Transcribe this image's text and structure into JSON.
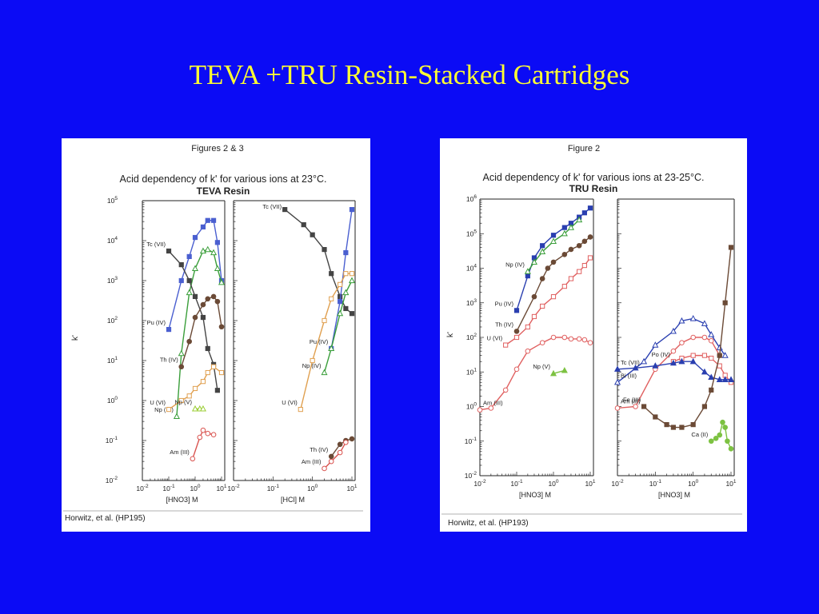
{
  "slide": {
    "title": "TEVA +TRU Resin-Stacked Cartridges"
  },
  "chart_data": [
    {
      "type": "line",
      "figure_label": "Figures 2 & 3",
      "title": "Acid dependency of k' for various ions at 23°C.",
      "subtitle": "TEVA Resin",
      "ylabel": "k'",
      "y_scale": "log",
      "ylim": [
        0.01,
        100000
      ],
      "y_ticks": [
        "10-2",
        "10-1",
        "100",
        "101",
        "102",
        "103",
        "104",
        "105"
      ],
      "citation": "Horwitz, et al. (HP195)",
      "subplots": [
        {
          "xlabel": "[HNO3] M",
          "x_scale": "log",
          "xlim": [
            0.01,
            10
          ],
          "x_ticks": [
            "10-2",
            "10-1",
            "100",
            "101"
          ],
          "series": [
            {
              "name": "Pu (IV)",
              "color": "#4A5FD0",
              "marker": "square-filled",
              "x": [
                0.1,
                0.3,
                0.6,
                1,
                2,
                3,
                5,
                7,
                10
              ],
              "y": [
                60,
                1000,
                4000,
                12000,
                22000,
                32000,
                32000,
                9000,
                1000
              ]
            },
            {
              "name": "Np (IV)",
              "color": "#3A9E3A",
              "marker": "triangle-open",
              "x": [
                0.2,
                0.3,
                0.6,
                1,
                2,
                3,
                5,
                7,
                10
              ],
              "y": [
                0.4,
                15,
                500,
                2000,
                5500,
                6000,
                5000,
                2000,
                900
              ]
            },
            {
              "name": "Tc (VII)",
              "color": "#444444",
              "marker": "square-filled",
              "x": [
                0.1,
                0.3,
                0.6,
                1,
                2,
                3,
                5,
                7
              ],
              "y": [
                5500,
                2500,
                1000,
                400,
                120,
                20,
                8,
                1.8
              ]
            },
            {
              "name": "Th (IV)",
              "color": "#6B4A36",
              "marker": "circle-filled",
              "x": [
                0.3,
                0.6,
                1,
                2,
                3,
                5,
                7,
                10
              ],
              "y": [
                7,
                30,
                120,
                250,
                350,
                400,
                300,
                70
              ]
            },
            {
              "name": "U (VI)",
              "color": "#E0A050",
              "marker": "square-open",
              "x": [
                0.1,
                0.3,
                0.6,
                1,
                2,
                3,
                5,
                10
              ],
              "y": [
                0.6,
                1,
                1.3,
                2,
                3,
                5,
                7,
                5
              ]
            },
            {
              "name": "Np (V)",
              "color": "#9ACD32",
              "marker": "triangle-open",
              "x": [
                1,
                1.5,
                2
              ],
              "y": [
                0.62,
                0.62,
                0.62
              ]
            },
            {
              "name": "Am (III)",
              "color": "#D9534F",
              "marker": "circle-open",
              "x": [
                0.8,
                1.5,
                2,
                3,
                5
              ],
              "y": [
                0.035,
                0.12,
                0.18,
                0.15,
                0.14
              ]
            }
          ]
        },
        {
          "xlabel": "[HCl] M",
          "x_scale": "log",
          "xlim": [
            0.01,
            10
          ],
          "x_ticks": [
            "10-2",
            "10-1",
            "100",
            "101"
          ],
          "series": [
            {
              "name": "Tc (VII)",
              "color": "#444444",
              "marker": "square-filled",
              "x": [
                0.2,
                0.6,
                1,
                2,
                3,
                5,
                7,
                10
              ],
              "y": [
                60000,
                25000,
                14000,
                6000,
                1500,
                400,
                200,
                150
              ]
            },
            {
              "name": "Pu (IV)",
              "color": "#4A5FD0",
              "marker": "square-filled",
              "x": [
                3,
                5,
                7,
                10
              ],
              "y": [
                20,
                300,
                5000,
                60000
              ]
            },
            {
              "name": "U (VI)",
              "color": "#E0A050",
              "marker": "square-open",
              "x": [
                0.5,
                1,
                2,
                3,
                5,
                7,
                10
              ],
              "y": [
                0.6,
                10,
                100,
                350,
                800,
                1500,
                1500
              ]
            },
            {
              "name": "Np (IV)",
              "color": "#3A9E3A",
              "marker": "triangle-open",
              "x": [
                2,
                3,
                5,
                7,
                10
              ],
              "y": [
                5,
                20,
                150,
                500,
                1000
              ]
            },
            {
              "name": "Th (IV)",
              "color": "#6B4A36",
              "marker": "circle-filled",
              "x": [
                3,
                5,
                7,
                10
              ],
              "y": [
                0.04,
                0.08,
                0.1,
                0.11
              ]
            },
            {
              "name": "Am (III)",
              "color": "#D9534F",
              "marker": "circle-open",
              "x": [
                2,
                3,
                5,
                7
              ],
              "y": [
                0.02,
                0.03,
                0.05,
                0.09
              ]
            }
          ]
        }
      ]
    },
    {
      "type": "line",
      "figure_label": "Figure 2",
      "title": "Acid dependency of k' for various ions at 23-25°C.",
      "subtitle": "TRU Resin",
      "ylabel": "k'",
      "y_scale": "log",
      "ylim": [
        0.01,
        1000000
      ],
      "y_ticks": [
        "10-2",
        "10-1",
        "100",
        "101",
        "102",
        "103",
        "104",
        "105",
        "106"
      ],
      "citation": "Horwitz, et al. (HP193)",
      "subplots": [
        {
          "xlabel": "[HNO3] M",
          "x_scale": "log",
          "xlim": [
            0.01,
            10
          ],
          "x_ticks": [
            "10-2",
            "10-1",
            "100",
            "101"
          ],
          "series": [
            {
              "name": "Pu (IV)",
              "color": "#2A3FB0",
              "marker": "square-filled",
              "x": [
                0.1,
                0.2,
                0.3,
                0.5,
                1,
                2,
                3,
                5,
                7,
                10
              ],
              "y": [
                600,
                6000,
                20000,
                45000,
                90000,
                150000,
                200000,
                300000,
                400000,
                550000
              ]
            },
            {
              "name": "Np (IV)",
              "color": "#3A9E3A",
              "marker": "triangle-open",
              "x": [
                0.2,
                0.3,
                0.5,
                1,
                2,
                3,
                5
              ],
              "y": [
                8000,
                15000,
                30000,
                60000,
                100000,
                150000,
                250000
              ]
            },
            {
              "name": "Th (IV)",
              "color": "#6B4A36",
              "marker": "circle-filled",
              "x": [
                0.1,
                0.3,
                0.5,
                0.7,
                1,
                2,
                3,
                5,
                7,
                10
              ],
              "y": [
                150,
                1500,
                5000,
                10000,
                15000,
                25000,
                35000,
                45000,
                60000,
                80000
              ]
            },
            {
              "name": "U (VI)",
              "color": "#E06060",
              "marker": "square-open",
              "x": [
                0.05,
                0.1,
                0.2,
                0.3,
                0.5,
                1,
                2,
                3,
                5,
                7,
                10
              ],
              "y": [
                60,
                100,
                200,
                400,
                800,
                1500,
                3000,
                5000,
                8000,
                12000,
                20000
              ]
            },
            {
              "name": "Am (III)",
              "color": "#E06060",
              "marker": "circle-open",
              "x": [
                0.01,
                0.02,
                0.05,
                0.1,
                0.2,
                0.5,
                1,
                2,
                3,
                5,
                7,
                10
              ],
              "y": [
                0.8,
                0.9,
                3,
                12,
                40,
                70,
                100,
                100,
                90,
                90,
                85,
                70
              ]
            },
            {
              "name": "Np (V)",
              "color": "#7DC242",
              "marker": "triangle-filled",
              "x": [
                1,
                2
              ],
              "y": [
                9,
                11
              ]
            }
          ]
        },
        {
          "xlabel": "[HNO3] M",
          "x_scale": "log",
          "xlim": [
            0.01,
            10
          ],
          "x_ticks": [
            "10-2",
            "10-1",
            "100",
            "101"
          ],
          "series": [
            {
              "name": "Bi (III)",
              "color": "#2A3FB0",
              "marker": "triangle-open",
              "x": [
                0.01,
                0.05,
                0.1,
                0.3,
                0.5,
                1,
                2,
                3,
                5,
                7
              ],
              "y": [
                5,
                20,
                60,
                150,
                300,
                350,
                250,
                120,
                50,
                30
              ]
            },
            {
              "name": "Am (III)",
              "color": "#E06060",
              "marker": "circle-open",
              "x": [
                0.01,
                0.03,
                0.1,
                0.3,
                0.5,
                1,
                2,
                3,
                5
              ],
              "y": [
                0.9,
                1,
                12,
                40,
                70,
                100,
                100,
                80,
                30
              ]
            },
            {
              "name": "Po (IV)",
              "color": "#E06060",
              "marker": "square-open",
              "x": [
                0.3,
                0.5,
                1,
                2,
                3,
                5,
                7,
                10
              ],
              "y": [
                20,
                25,
                30,
                30,
                25,
                15,
                8,
                5
              ]
            },
            {
              "name": "Tc (VII)",
              "color": "#2A3FB0",
              "marker": "triangle-filled",
              "x": [
                0.01,
                0.03,
                0.1,
                0.3,
                0.5,
                1,
                2,
                3,
                5,
                7,
                10
              ],
              "y": [
                12,
                13,
                15,
                18,
                20,
                20,
                10,
                7,
                6,
                6,
                6
              ]
            },
            {
              "name": "Fe (III)",
              "color": "#6B4A36",
              "marker": "square-filled",
              "x": [
                0.05,
                0.1,
                0.2,
                0.3,
                0.5,
                1,
                2,
                3,
                5,
                7,
                10
              ],
              "y": [
                1,
                0.5,
                0.3,
                0.25,
                0.25,
                0.3,
                1,
                3,
                30,
                1000,
                40000
              ]
            },
            {
              "name": "Ca (II)",
              "color": "#7DC242",
              "marker": "circle-filled",
              "x": [
                3,
                4,
                5,
                6,
                7,
                8,
                10
              ],
              "y": [
                0.1,
                0.12,
                0.15,
                0.35,
                0.25,
                0.1,
                0.06
              ]
            }
          ]
        }
      ]
    }
  ]
}
